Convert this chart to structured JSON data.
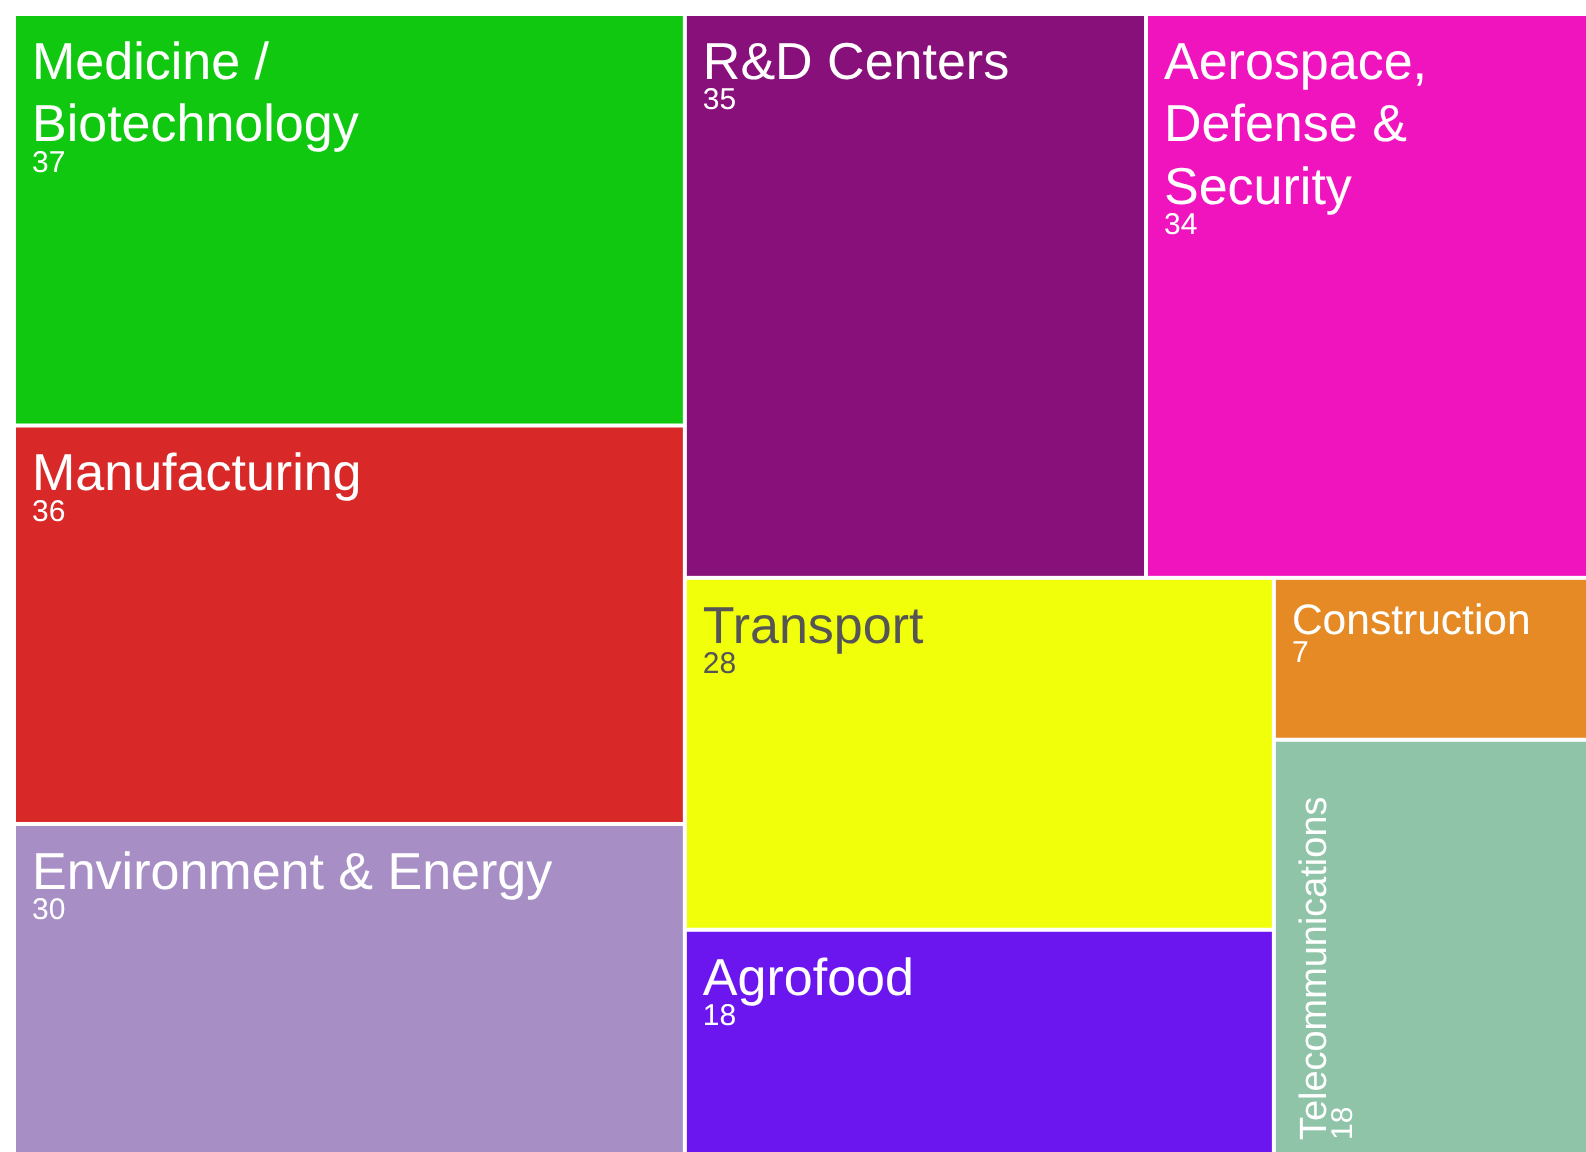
{
  "chart_data": {
    "type": "other",
    "categories": [
      "Medicine / Biotechnology",
      "Manufacturing",
      "R&D Centers",
      "Aerospace, Defense & Security",
      "Environment & Energy",
      "Transport",
      "Agrofood",
      "Telecommunications",
      "Construction"
    ],
    "values": [
      37,
      36,
      35,
      34,
      30,
      28,
      18,
      18,
      7
    ],
    "colors": [
      "#11c811",
      "#d92828",
      "#87107a",
      "#f014be",
      "#a78fc6",
      "#f2ff0a",
      "#6b16ef",
      "#8fc4a9",
      "#e58a24"
    ],
    "data_labels": true
  }
}
